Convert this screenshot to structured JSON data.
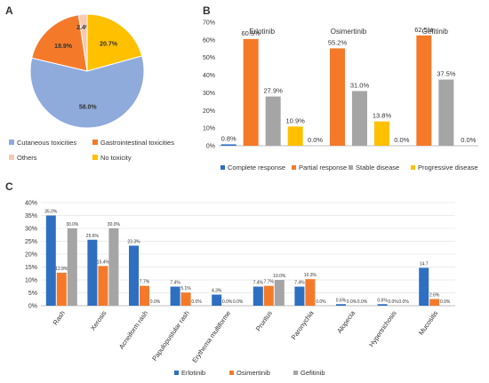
{
  "panels": {
    "a": "A",
    "b": "B",
    "c": "C"
  },
  "chart_data": [
    {
      "id": "A",
      "type": "pie",
      "slices": [
        {
          "label": "Cutaneous toxicities",
          "value": 58.0,
          "display": "58.0%",
          "color": "#8fabdc"
        },
        {
          "label": "Gastrointestinal toxicities",
          "value": 18.9,
          "display": "18.9%",
          "color": "#f47a2a"
        },
        {
          "label": "Others",
          "value": 2.4,
          "display": "2.4%",
          "color": "#f8c9b0"
        },
        {
          "label": "No toxicity",
          "value": 20.7,
          "display": "20.7%",
          "color": "#ffc000"
        }
      ],
      "legend": {
        "placement": "bottom"
      }
    },
    {
      "id": "B",
      "type": "bar",
      "categories": [
        "Erlotinib",
        "Osimertinib",
        "Gefitinib"
      ],
      "series": [
        {
          "name": "Complete response",
          "color": "#2e6fc2",
          "values": [
            0.8,
            0.0,
            0.0
          ],
          "labels": [
            "0.8%",
            "0.0%",
            "0.0%"
          ]
        },
        {
          "name": "Partial response",
          "color": "#f47a2a",
          "values": [
            60.5,
            55.2,
            62.5
          ],
          "labels": [
            "60.5%",
            "55.2%",
            "62.5%"
          ]
        },
        {
          "name": "Stable disease",
          "color": "#a5a5a5",
          "values": [
            27.9,
            31.0,
            37.5
          ],
          "labels": [
            "27.9%",
            "31.0%",
            "37.5%"
          ]
        },
        {
          "name": "Progressive disease",
          "color": "#ffc000",
          "values": [
            10.9,
            13.8,
            0.0
          ],
          "labels": [
            "10.9%",
            "13.8%",
            "0.0%"
          ]
        }
      ],
      "ylim": [
        0,
        70
      ],
      "yticks": [
        "0%",
        "10%",
        "20%",
        "30%",
        "40%",
        "50%",
        "60%",
        "70%"
      ],
      "legend": {
        "placement": "bottom"
      }
    },
    {
      "id": "C",
      "type": "bar",
      "categories": [
        "Rash",
        "Xerosis",
        "Acneiform rash",
        "Papulopustular rash",
        "Erythema multiforme",
        "Pruritus",
        "Paronychia",
        "Alopecia",
        "Hypertrichosis",
        "Mucositis"
      ],
      "series": [
        {
          "name": "Erlotinib",
          "color": "#2e6fc2",
          "values": [
            35.0,
            25.6,
            23.3,
            7.4,
            4.3,
            7.4,
            7.4,
            0.6,
            0.6,
            14.7
          ],
          "labels": [
            "35.0%",
            "25.6%",
            "23.3%",
            "7.4%",
            "4.3%",
            "7.4%",
            "7.4%",
            "0.6%",
            "0.6%",
            "14.7"
          ]
        },
        {
          "name": "Osimertinib",
          "color": "#f47a2a",
          "values": [
            12.8,
            15.4,
            7.7,
            5.1,
            0.0,
            7.7,
            10.3,
            0.0,
            0.0,
            2.6
          ],
          "labels": [
            "12.8%",
            "15.4%",
            "7.7%",
            "5.1%",
            "0.0%",
            "7.7%",
            "10.3%",
            "0.0%",
            "0.0%",
            "2.6%"
          ]
        },
        {
          "name": "Gefitinib",
          "color": "#a5a5a5",
          "values": [
            30.0,
            30.0,
            0.0,
            0.0,
            0.0,
            10.0,
            0.0,
            0.0,
            0.0,
            0.0
          ],
          "labels": [
            "30.0%",
            "30.0%",
            "0.0%",
            "0.0%",
            "0.0%",
            "10.0%",
            "0.0%",
            "0.0%",
            "0.0%",
            "0.0%"
          ]
        }
      ],
      "ylim": [
        0,
        40
      ],
      "yticks": [
        "0%",
        "5%",
        "10%",
        "15%",
        "20%",
        "25%",
        "30%",
        "35%",
        "40%"
      ],
      "grid": true,
      "legend": {
        "placement": "bottom"
      }
    }
  ]
}
